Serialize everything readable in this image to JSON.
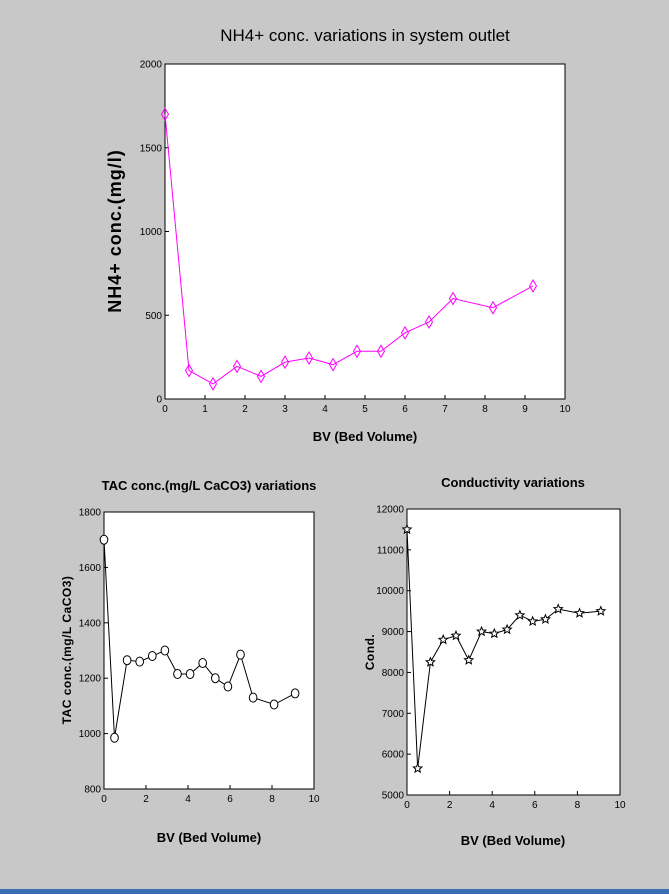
{
  "chart_data": [
    {
      "type": "line",
      "title": "NH4+ conc. variations in system outlet",
      "xlabel": "BV (Bed Volume)",
      "ylabel": "NH4+ conc.(mg/l)",
      "xlim": [
        0,
        10
      ],
      "ylim": [
        0,
        2000
      ],
      "xticks": [
        0,
        1,
        2,
        3,
        4,
        5,
        6,
        7,
        8,
        9,
        10
      ],
      "yticks": [
        0,
        500,
        1000,
        1500,
        2000
      ],
      "grid": false,
      "marker": "diamond",
      "color": "#ff00ff",
      "series": [
        {
          "x": [
            0,
            0.6,
            1.2,
            1.8,
            2.4,
            3.0,
            3.6,
            4.2,
            4.8,
            5.4,
            6.0,
            6.6,
            7.2,
            8.2,
            9.2
          ],
          "values": [
            1700,
            170,
            90,
            195,
            135,
            220,
            245,
            205,
            285,
            285,
            395,
            460,
            600,
            545,
            675
          ]
        }
      ]
    },
    {
      "type": "line",
      "title": "TAC conc.(mg/L CaCO3) variations",
      "xlabel": "BV (Bed Volume)",
      "ylabel": "TAC conc.(mg/L CaCO3)",
      "xlim": [
        0,
        10
      ],
      "ylim": [
        800,
        1800
      ],
      "xticks": [
        0,
        2,
        4,
        6,
        8,
        10
      ],
      "yticks": [
        800,
        1000,
        1200,
        1400,
        1600,
        1800
      ],
      "grid": false,
      "marker": "circle",
      "color": "#000000",
      "series": [
        {
          "x": [
            0,
            0.5,
            1.1,
            1.7,
            2.3,
            2.9,
            3.5,
            4.1,
            4.7,
            5.3,
            5.9,
            6.5,
            7.1,
            8.1,
            9.1
          ],
          "values": [
            1700,
            985,
            1265,
            1260,
            1280,
            1300,
            1215,
            1215,
            1255,
            1200,
            1170,
            1285,
            1130,
            1105,
            1145
          ]
        }
      ]
    },
    {
      "type": "line",
      "title": "Conductivity variations",
      "xlabel": "BV (Bed Volume)",
      "ylabel": "Cond.",
      "xlim": [
        0,
        10
      ],
      "ylim": [
        5000,
        12000
      ],
      "xticks": [
        0,
        2,
        4,
        6,
        8,
        10
      ],
      "yticks": [
        5000,
        6000,
        7000,
        8000,
        9000,
        10000,
        11000,
        12000
      ],
      "grid": false,
      "marker": "star",
      "color": "#000000",
      "series": [
        {
          "x": [
            0,
            0.5,
            1.1,
            1.7,
            2.3,
            2.9,
            3.5,
            4.1,
            4.7,
            5.3,
            5.9,
            6.5,
            7.1,
            8.1,
            9.1
          ],
          "values": [
            11500,
            5650,
            8250,
            8800,
            8900,
            8300,
            9000,
            8950,
            9050,
            9400,
            9250,
            9300,
            9550,
            9450,
            9500
          ]
        }
      ]
    }
  ]
}
